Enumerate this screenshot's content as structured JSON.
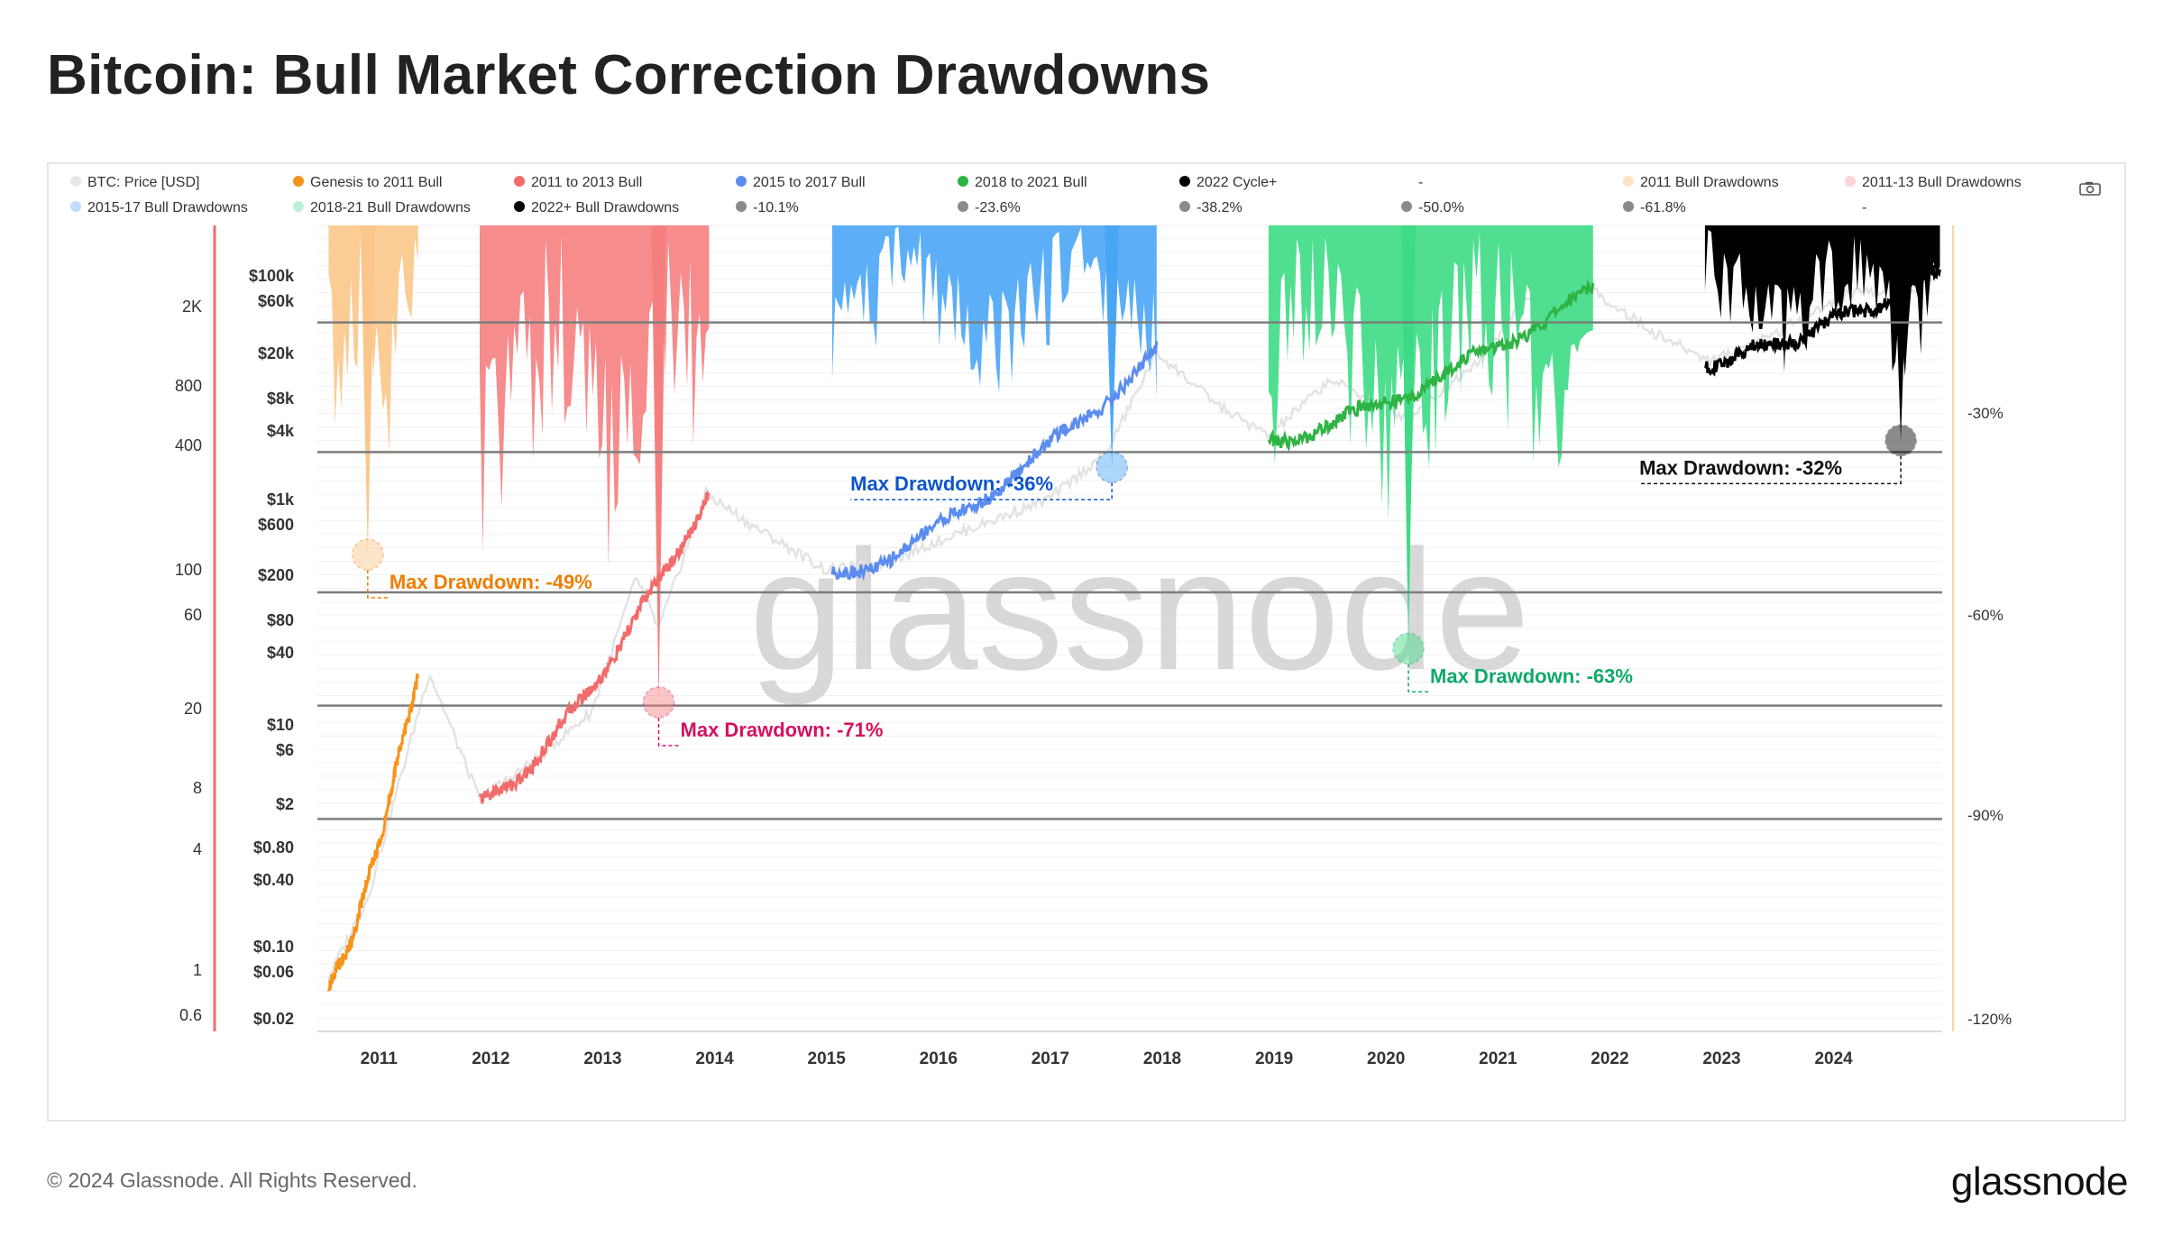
{
  "page": {
    "title": "Bitcoin: Bull Market Correction Drawdowns",
    "footer": "© 2024 Glassnode. All Rights Reserved.",
    "brand": "glassnode",
    "watermark": "glassnode",
    "icons": {
      "export": "camera-icon"
    }
  },
  "chart_data": {
    "type": "line",
    "title": "Bitcoin: Bull Market Correction Drawdowns",
    "x_ticks": [
      "2011",
      "2012",
      "2013",
      "2014",
      "2015",
      "2016",
      "2017",
      "2018",
      "2019",
      "2020",
      "2021",
      "2022",
      "2023",
      "2024"
    ],
    "y_left_outer_ticks": [
      "2K",
      "800",
      "400",
      "100",
      "60",
      "20",
      "8",
      "4",
      "1",
      "0.6"
    ],
    "y_left_price_ticks": [
      "$100k",
      "$60k",
      "$20k",
      "$8k",
      "$4k",
      "$1k",
      "$600",
      "$200",
      "$80",
      "$40",
      "$10",
      "$6",
      "$2",
      "$0.80",
      "$0.40",
      "$0.10",
      "$0.06",
      "$0.02"
    ],
    "y_right_ticks": [
      "-30%",
      "-60%",
      "-90%",
      "-120%"
    ],
    "y_right_range": [
      -120,
      0
    ],
    "grid": true,
    "legend": [
      {
        "label": "BTC: Price [USD]",
        "color": "#e8e8e8"
      },
      {
        "label": "Genesis to 2011 Bull",
        "color": "#f7931a"
      },
      {
        "label": "2011 to 2013 Bull",
        "color": "#f26b6b"
      },
      {
        "label": "2015 to 2017 Bull",
        "color": "#5b8def"
      },
      {
        "label": "2018 to 2021 Bull",
        "color": "#2fb344"
      },
      {
        "label": "2022 Cycle+",
        "color": "#000000"
      },
      {
        "label": "-",
        "color": ""
      },
      {
        "label": "2011 Bull Drawdowns",
        "color": "#fde4c4"
      },
      {
        "label": "2011-13 Bull Drawdowns",
        "color": "#fbd4dc"
      },
      {
        "label": "2015-17 Bull Drawdowns",
        "color": "#bfdcfb"
      },
      {
        "label": "2018-21 Bull Drawdowns",
        "color": "#bff0d4"
      },
      {
        "label": "2022+ Bull Drawdowns",
        "color": "#000000"
      },
      {
        "label": "-10.1%",
        "color": "#8a8a8a"
      },
      {
        "label": "-23.6%",
        "color": "#8a8a8a"
      },
      {
        "label": "-38.2%",
        "color": "#8a8a8a"
      },
      {
        "label": "-50.0%",
        "color": "#8a8a8a"
      },
      {
        "label": "-61.8%",
        "color": "#8a8a8a"
      },
      {
        "label": "-",
        "color": ""
      }
    ],
    "fib_levels_pct": [
      -10.1,
      -23.6,
      -38.2,
      -50.0,
      -61.8
    ],
    "series": [
      {
        "name": "Genesis to 2011 Bull",
        "color": "#f7931a",
        "x_range": [
          2010.55,
          2011.35
        ],
        "price_range": [
          0.05,
          30
        ]
      },
      {
        "name": "2011 to 2013 Bull",
        "color": "#f26b6b",
        "x_range": [
          2011.9,
          2013.95
        ],
        "price_range": [
          2,
          1100
        ]
      },
      {
        "name": "2015 to 2017 Bull",
        "color": "#5b8def",
        "x_range": [
          2015.05,
          2017.95
        ],
        "price_range": [
          200,
          19000
        ]
      },
      {
        "name": "2018 to 2021 Bull",
        "color": "#2fb344",
        "x_range": [
          2018.95,
          2021.85
        ],
        "price_range": [
          3200,
          68000
        ]
      },
      {
        "name": "2022 Cycle+",
        "color": "#000000",
        "x_range": [
          2022.85,
          2024.95
        ],
        "price_range": [
          15500,
          100000
        ]
      }
    ],
    "drawdown_bands": [
      {
        "name": "2011 Bull Drawdowns",
        "color": "#fcc68a",
        "x_range": [
          2010.55,
          2011.35
        ],
        "max_pct": -49
      },
      {
        "name": "2011-13 Bull Drawdowns",
        "color": "#f57f7f",
        "x_range": [
          2011.9,
          2013.95
        ],
        "max_pct": -71
      },
      {
        "name": "2015-17 Bull Drawdowns",
        "color": "#4aa6f5",
        "x_range": [
          2015.05,
          2017.95
        ],
        "max_pct": -36
      },
      {
        "name": "2018-21 Bull Drawdowns",
        "color": "#3ddb85",
        "x_range": [
          2018.95,
          2021.85
        ],
        "max_pct": -63
      },
      {
        "name": "2022+ Bull Drawdowns",
        "color": "#000000",
        "x_range": [
          2022.85,
          2024.95
        ],
        "max_pct": -32
      }
    ],
    "annotations": [
      {
        "text": "Max Drawdown: -49%",
        "color": "#ef7d00",
        "x": 2010.9,
        "pct": -49
      },
      {
        "text": "Max Drawdown: -71%",
        "color": "#d6115e",
        "x": 2013.5,
        "pct": -71
      },
      {
        "text": "Max Drawdown: -36%",
        "color": "#0b55c9",
        "x": 2017.55,
        "pct": -36
      },
      {
        "text": "Max Drawdown: -63%",
        "color": "#10a86b",
        "x": 2020.2,
        "pct": -63
      },
      {
        "text": "Max Drawdown: -32%",
        "color": "#111111",
        "x": 2024.6,
        "pct": -32
      }
    ]
  }
}
